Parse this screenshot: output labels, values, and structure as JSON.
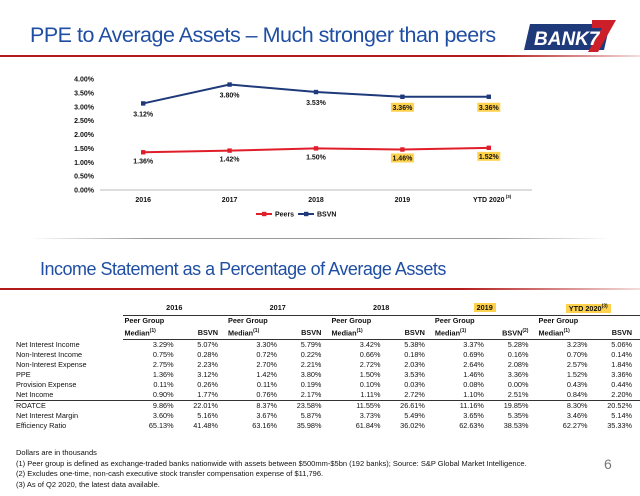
{
  "title": "PPE to Average Assets – Much stronger than peers",
  "title2": "Income Statement as a Percentage of Average Assets",
  "logo_text": "BANK7",
  "colors": {
    "peers": "#e01e2a",
    "bsvn": "#1f3a7a",
    "highlight": "#ffd24d",
    "title": "#1f4ea3"
  },
  "chart_data": {
    "type": "line",
    "categories": [
      "2016",
      "2017",
      "2018",
      "2019",
      "YTD 2020"
    ],
    "category_notes": [
      "",
      "",
      "",
      "",
      "(3)"
    ],
    "ylim": [
      0,
      4.0
    ],
    "yticks": [
      "0.00%",
      "0.50%",
      "1.00%",
      "1.50%",
      "2.00%",
      "2.50%",
      "3.00%",
      "3.50%",
      "4.00%"
    ],
    "ytick_values": [
      0,
      0.5,
      1.0,
      1.5,
      2.0,
      2.5,
      3.0,
      3.5,
      4.0
    ],
    "grid": false,
    "legend_position": "bottom",
    "series": [
      {
        "name": "Peers",
        "values": [
          1.36,
          1.42,
          1.5,
          1.46,
          1.52
        ],
        "labels": [
          "1.36%",
          "1.42%",
          "1.50%",
          "1.46%",
          "1.52%"
        ],
        "highlighted": [
          false,
          false,
          false,
          true,
          true
        ]
      },
      {
        "name": "BSVN",
        "values": [
          3.12,
          3.8,
          3.53,
          3.36,
          3.36
        ],
        "labels": [
          "3.12%",
          "3.80%",
          "3.53%",
          "3.36%",
          "3.36%"
        ],
        "highlighted": [
          false,
          false,
          false,
          true,
          true
        ]
      }
    ]
  },
  "table": {
    "years": [
      "2016",
      "2017",
      "2018",
      "2019",
      "YTD 2020"
    ],
    "year_notes": [
      "",
      "",
      "",
      "",
      "(3)"
    ],
    "subheader_top": "Peer Group",
    "subheader_median": "Median",
    "median_note": "(1)",
    "subheader_bsvn": "BSVN",
    "bsvn_note_2019": "(2)",
    "rows": [
      {
        "label": "Net Interest Income",
        "values": [
          "3.29%",
          "5.07%",
          "3.30%",
          "5.79%",
          "3.42%",
          "5.38%",
          "3.37%",
          "5.28%",
          "3.23%",
          "5.06%"
        ]
      },
      {
        "label": "Non-Interest Income",
        "values": [
          "0.75%",
          "0.28%",
          "0.72%",
          "0.22%",
          "0.66%",
          "0.18%",
          "0.69%",
          "0.16%",
          "0.70%",
          "0.14%"
        ]
      },
      {
        "label": "Non-Interest Expense",
        "values": [
          "2.75%",
          "2.23%",
          "2.70%",
          "2.21%",
          "2.72%",
          "2.03%",
          "2.64%",
          "2.08%",
          "2.57%",
          "1.84%"
        ]
      },
      {
        "label": "PPE",
        "values": [
          "1.36%",
          "3.12%",
          "1.42%",
          "3.80%",
          "1.50%",
          "3.53%",
          "1.46%",
          "3.36%",
          "1.52%",
          "3.36%"
        ]
      },
      {
        "label": "Provision Expense",
        "values": [
          "0.11%",
          "0.26%",
          "0.11%",
          "0.19%",
          "0.10%",
          "0.03%",
          "0.08%",
          "0.00%",
          "0.43%",
          "0.44%"
        ]
      },
      {
        "label": "Net Income",
        "values": [
          "0.90%",
          "1.77%",
          "0.76%",
          "2.17%",
          "1.11%",
          "2.72%",
          "1.10%",
          "2.51%",
          "0.84%",
          "2.20%"
        ]
      },
      {
        "label": "ROATCE",
        "values": [
          "9.86%",
          "22.01%",
          "8.37%",
          "23.58%",
          "11.55%",
          "26.61%",
          "11.16%",
          "19.85%",
          "8.30%",
          "20.52%"
        ]
      },
      {
        "label": "Net Interest Margin",
        "values": [
          "3.60%",
          "5.16%",
          "3.67%",
          "5.87%",
          "3.73%",
          "5.49%",
          "3.65%",
          "5.35%",
          "3.46%",
          "5.14%"
        ]
      },
      {
        "label": "Efficiency Ratio",
        "values": [
          "65.13%",
          "41.48%",
          "63.16%",
          "35.98%",
          "61.84%",
          "36.02%",
          "62.63%",
          "38.53%",
          "62.27%",
          "35.33%"
        ]
      }
    ]
  },
  "notes": [
    "Dollars are in thousands",
    "(1)   Peer group is defined as exchange-traded banks nationwide with assets between $500mm-$5bn (192 banks); Source: S&P Global Market Intelligence.",
    "(2)   Excludes one-time, non-cash executive stock transfer compensation expense of $11,796.",
    "(3)   As of Q2 2020, the latest data available."
  ],
  "page_number": "6"
}
